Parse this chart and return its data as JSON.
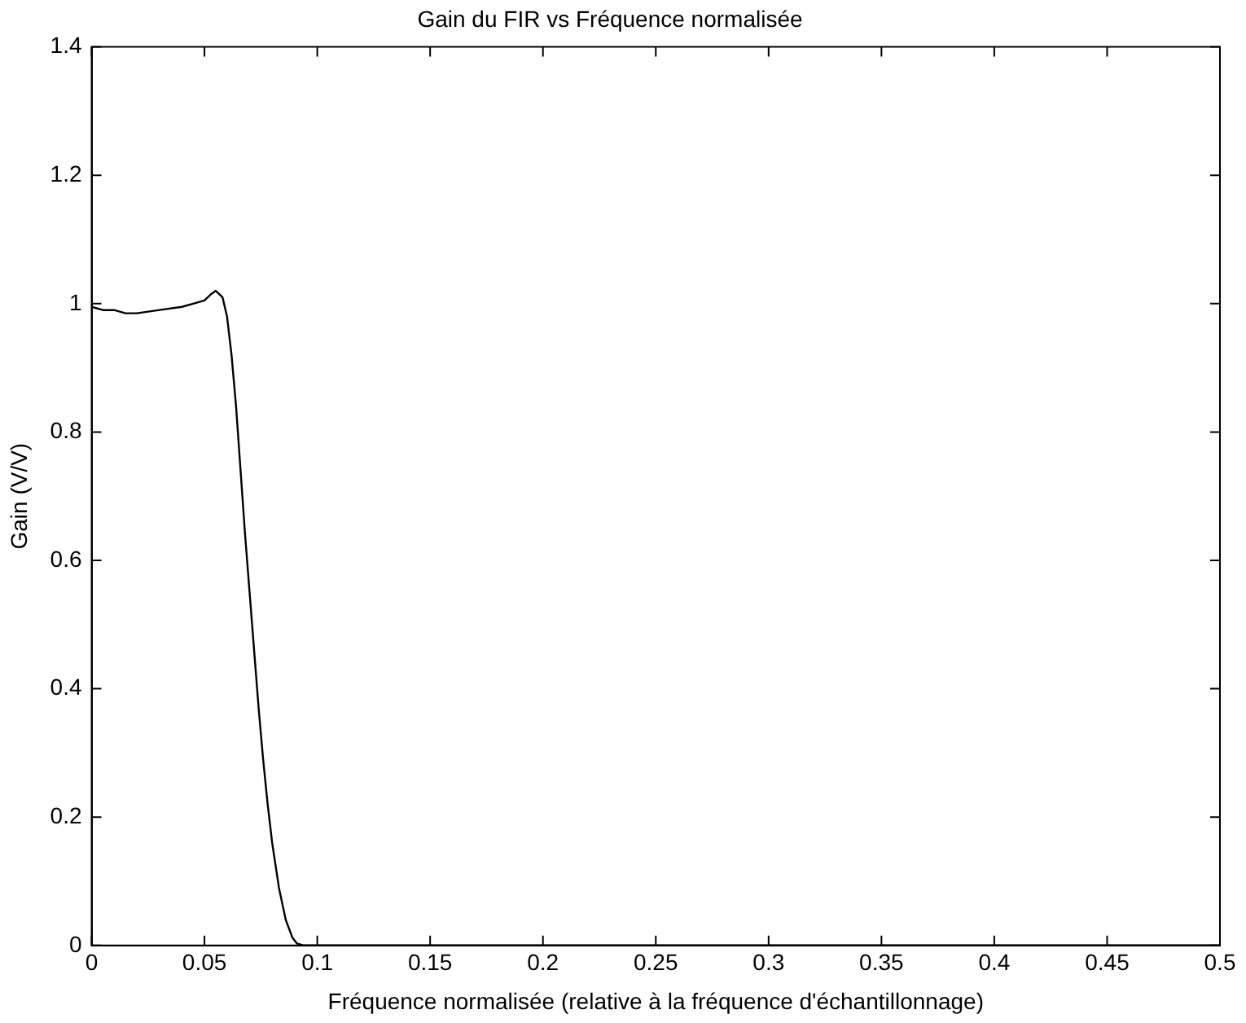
{
  "chart_data": {
    "type": "line",
    "title": "Gain du FIR vs Fréquence normalisée",
    "xlabel": "Fréquence normalisée (relative à la fréquence d'échantillonnage)",
    "ylabel": "Gain (V/V)",
    "x": [
      0,
      0.005,
      0.01,
      0.015,
      0.02,
      0.03,
      0.04,
      0.045,
      0.05,
      0.053,
      0.055,
      0.058,
      0.06,
      0.062,
      0.064,
      0.066,
      0.068,
      0.07,
      0.072,
      0.074,
      0.076,
      0.078,
      0.08,
      0.083,
      0.086,
      0.089,
      0.091,
      0.094,
      0.1,
      0.2,
      0.3,
      0.4,
      0.5
    ],
    "series": [
      {
        "color": "#000000",
        "values": [
          0.995,
          0.99,
          0.99,
          0.985,
          0.985,
          0.99,
          0.995,
          1.0,
          1.005,
          1.015,
          1.02,
          1.01,
          0.98,
          0.92,
          0.84,
          0.74,
          0.64,
          0.55,
          0.46,
          0.37,
          0.29,
          0.22,
          0.16,
          0.09,
          0.04,
          0.012,
          0.003,
          0,
          0,
          0,
          0,
          0,
          0
        ]
      }
    ],
    "xlim": [
      0,
      0.5
    ],
    "xticks": [
      0,
      0.05,
      0.1,
      0.15,
      0.2,
      0.25,
      0.3,
      0.35,
      0.4,
      0.45,
      0.5
    ],
    "ylim": [
      0,
      1.4
    ],
    "yticks": [
      0,
      0.2,
      0.4,
      0.6,
      0.8,
      1,
      1.2,
      1.4
    ],
    "grid": false,
    "legend": false,
    "marker": "none",
    "line_style": "solid"
  }
}
